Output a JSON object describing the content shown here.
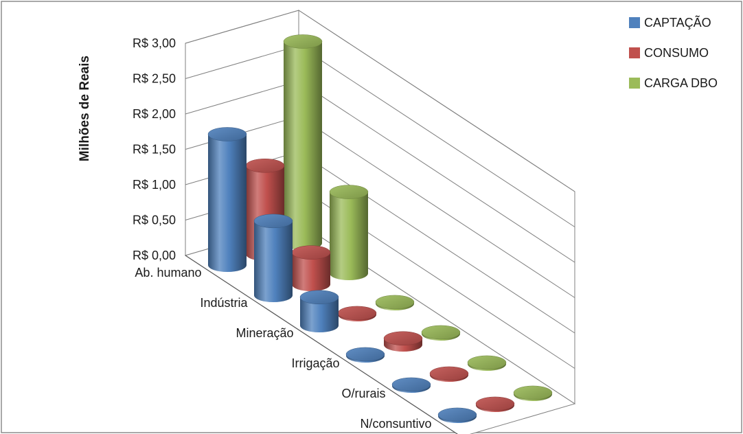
{
  "chart_data": {
    "type": "bar",
    "variant": "3d-cylinder",
    "title": "",
    "ylabel": "Milhões de Reais",
    "xlabel": "",
    "ylim": [
      0,
      3
    ],
    "yticks": [
      "R$ 0,00",
      "R$ 0,50",
      "R$ 1,00",
      "R$ 1,50",
      "R$ 2,00",
      "R$ 2,50",
      "R$ 3,00"
    ],
    "categories": [
      "Ab. humano",
      "Indústria",
      "Mineração",
      "Irrigação",
      "O/rurais",
      "N/consuntivo"
    ],
    "series": [
      {
        "name": "CAPTAÇÃO",
        "color": "#4f81bd",
        "values": [
          1.85,
          1.05,
          0.4,
          0.02,
          0.02,
          0.02
        ]
      },
      {
        "name": "CONSUMO",
        "color": "#c0504d",
        "values": [
          1.25,
          0.45,
          0.02,
          0.09,
          0.02,
          0.02
        ]
      },
      {
        "name": "CARGA DBO",
        "color": "#9bbb59",
        "values": [
          2.85,
          1.15,
          0.02,
          0.02,
          0.02,
          0.02
        ]
      }
    ],
    "legend_position": "right",
    "grid": true
  }
}
